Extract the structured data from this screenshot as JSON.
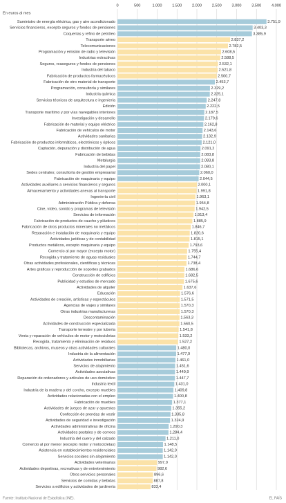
{
  "chart_data": {
    "type": "hbar",
    "subtitle": "En euros al mes",
    "source": "Fuente: Instituto Nacional de Estadística (INE).",
    "credit": "EL PAÍS",
    "xlim": [
      0,
      4000
    ],
    "xticks": [
      0,
      500,
      {
        "value": 1000,
        "label": "1.000"
      },
      {
        "value": 1500,
        "label": "1.500"
      },
      {
        "value": 2000,
        "label": "2.000"
      },
      {
        "value": 2500,
        "label": "2.500"
      },
      {
        "value": 3000,
        "label": "3.000"
      },
      {
        "value": 3500,
        "label": "3.500"
      },
      {
        "value": 4000,
        "label": "4.000"
      }
    ],
    "grid": true,
    "categories": [
      "Suministro de energía eléctrica, gas y aire acondicionado",
      "Servicios financieros, excepto seguros y fondos de pensiones",
      "Coquerías y refino de petróleo",
      "Transporte aéreo",
      "Telecomunicaciones",
      "Programación y emisión de radio y televisión",
      "Industrias extractivas",
      "Seguros, reaseguros y fondos de pensiones",
      "Industria del tabaco",
      "Fabricación de productos farmacéuticos",
      "Fabricación de otro material de transporte",
      "Programación, consultoría y similares",
      "Industria química",
      "Servicios técnicos de arquitectura e ingeniería",
      "Edición",
      "Transporte marítimo y por vías navegables interiores",
      "Investigación y desarrollo",
      "Fabricación de material y equipo eléctrico",
      "Fabricación de vehículos de motor",
      "Actividades sanitarias",
      "Fabricación de productos informáticos, electrónicos y ópticos",
      "Captación, depuración y distribución de agua",
      "Fabricación de bebidas",
      "Metalurgia",
      "Industria del papel",
      "Sedes centrales; consultoría de gestión empresarial",
      "Fabricación de maquinaria y equipo",
      "Actividades auxiliares a servicios financieros y seguros",
      "Almacenamiento y actividades anexas al transporte",
      "Ingeniería civil",
      "Administración Pública y defensa",
      "Cine, vídeo, sonido y programas de televisión",
      "Servicios de información",
      "Fabricación de productos de caucho y plásticos",
      "Fabricación de otros productos minerales no metálicos",
      "Reparación e instalación de maquinaria y equipo",
      "Actividades jurídicas y de contabilidad",
      "Productos metálicos, excepto maquinaria y equipo",
      "Comercio al por mayor (excepto motor)",
      "Recogida y tratamiento de aguas residuales",
      "Otras actividades profesionales, científicas y técnicas",
      "Artes gráficas y reproducción de soportes grabados",
      "Construcción de edificios",
      "Publicidad y estudios de mercado",
      "Actividades de alquiler",
      "Educación",
      "Actividades de creación, artísticas y espectáculos",
      "Agencias de viajes y similares",
      "Otras industrias manufactureras",
      "Descontaminación",
      "Actividades de construcción especializada",
      "Transporte terrestre y por tubería",
      "Venta y reparación de vehículos de motor y motocicletas",
      "Recogida, tratamiento y eliminación de residuos",
      "Bibliotecas, archivos, museos y otras actividades culturales",
      "Industria de la alimentación",
      "Actividades inmobiliarias",
      "Servicios de alojamiento",
      "Actividades asociativas",
      "Reparación de ordenadores y artículos de uso doméstico",
      "Industria textil",
      "Industria de la madera y del corcho, excepto muebles",
      "Actividades relacionadas con el empleo",
      "Fabricación de muebles",
      "Actividades de juegos de azar y apuestas",
      "Confección de prendas de vestir",
      "Actividades de seguridad e investigación",
      "Actividades administrativas de oficina",
      "Actividades postales y de correos",
      "Industria del cuero y del calzado",
      "Comercio al por menor (excepto motor y motocicletas)",
      "Asistencia en establecimientos residenciales",
      "Servicios sociales sin alojamiento",
      "Actividades veterinarias",
      "Actividades deportivas, recreativas y de entretenimiento",
      "Otros servicios personales",
      "Servicios de comidas y bebidas",
      "Servicios a edificios y actividades de jardinería"
    ],
    "values": [
      3751.9,
      3403.3,
      3385.9,
      2837.2,
      2782.5,
      2608.5,
      2588.5,
      2532.1,
      2521.8,
      2500.7,
      2453.7,
      2329.2,
      2325.1,
      2247.8,
      2222.5,
      2187.5,
      2179.6,
      2162.8,
      2143.6,
      2132.9,
      2121.0,
      2091.2,
      2083.8,
      2083.8,
      2080.1,
      2060.0,
      2044.5,
      2000.1,
      1991.8,
      1963.1,
      1954.8,
      1942.5,
      1913.4,
      1885.9,
      1846.7,
      1820.6,
      1815.1,
      1793.6,
      1755.4,
      1744.7,
      1738.4,
      1686.6,
      1682.5,
      1675.6,
      1637.6,
      1576.6,
      1571.5,
      1570.3,
      1570.3,
      1563.3,
      1560.5,
      1541.8,
      1533.2,
      1527.2,
      1480.0,
      1477.9,
      1461.0,
      1451.6,
      1449.9,
      1447.7,
      1431.0,
      1409.8,
      1400.8,
      1377.1,
      1355.2,
      1335.8,
      1324.9,
      1290.3,
      1284.4,
      1211.0,
      1148.5,
      1142.0,
      1142.0,
      997.0,
      982.6,
      896.6,
      887.8,
      833.4
    ],
    "value_labels": [
      "3.751,9",
      "3.403,3",
      "3.385,9",
      "2.837,2",
      "2.782,5",
      "2.608,5",
      "2.588,5",
      "2.532,1",
      "2.521,8",
      "2.500,7",
      "2.453,7",
      "2.329,2",
      "2.325,1",
      "2.247,8",
      "2.222,5",
      "2.187,5",
      "2.179,6",
      "2.162,8",
      "2.143,6",
      "2.132,9",
      "2.121,0",
      "2.091,2",
      "2.083,8",
      "2.083,8",
      "2.080,1",
      "2.060,0",
      "2.044,5",
      "2.000,1",
      "1.991,8",
      "1.963,1",
      "1.954,8",
      "1.942,5",
      "1.913,4",
      "1.885,9",
      "1.846,7",
      "1.820,6",
      "1.815,1",
      "1.793,6",
      "1.755,4",
      "1.744,7",
      "1.738,4",
      "1.686,6",
      "1.682,5",
      "1.675,6",
      "1.637,6",
      "1.576,6",
      "1.571,5",
      "1.570,3",
      "1.570,3",
      "1.563,3",
      "1.560,5",
      "1.541,8",
      "1.533,2",
      "1.527,2",
      "1.480,0",
      "1.477,9",
      "1.461,0",
      "1.451,6",
      "1.449,9",
      "1.447,7",
      "1.431,0",
      "1.409,8",
      "1.400,8",
      "1.377,1",
      "1.355,2",
      "1.335,8",
      "1.324,9",
      "1.290,3",
      "1.284,4",
      "1.211,0",
      "1.148,5",
      "1.142,0",
      "1.142,0",
      "997,0",
      "982,6",
      "896,6",
      "887,8",
      "833,4"
    ],
    "colors": [
      "#a6cbda",
      "#a6cbda",
      "#a6cbda",
      "#fbe2a8",
      "#fbe2a8",
      "#fbe2a8",
      "#fbe2a8",
      "#fbe2a8",
      "#fbe2a8",
      "#fbe2a8",
      "#a6cbda",
      "#a6cbda",
      "#a6cbda",
      "#a6cbda",
      "#a6cbda",
      "#a6cbda",
      "#a6cbda",
      "#a6cbda",
      "#a6cbda",
      "#a6cbda",
      "#a6cbda",
      "#a6cbda",
      "#a6cbda",
      "#a6cbda",
      "#a6cbda",
      "#a6cbda",
      "#a6cbda",
      "#fbe2a8",
      "#fbe2a8",
      "#fbe2a8",
      "#fbe2a8",
      "#fbe2a8",
      "#fbe2a8",
      "#fbe2a8",
      "#fbe2a8",
      "#fbe2a8",
      "#fbe2a8",
      "#fbe2a8",
      "#fbe2a8",
      "#fbe2a8",
      "#fbe2a8",
      "#fbe2a8",
      "#fbe2a8",
      "#fbe2a8",
      "#fbe2a8",
      "#fbe2a8",
      "#fbe2a8",
      "#fbe2a8",
      "#fbe2a8",
      "#fbe2a8",
      "#fbe2a8",
      "#fbe2a8",
      "#fbe2a8",
      "#fbe2a8",
      "#a6cbda",
      "#a6cbda",
      "#a6cbda",
      "#a6cbda",
      "#a6cbda",
      "#a6cbda",
      "#a6cbda",
      "#a6cbda",
      "#a6cbda",
      "#a6cbda",
      "#a6cbda",
      "#a6cbda",
      "#a6cbda",
      "#a6cbda",
      "#a6cbda",
      "#a6cbda",
      "#a6cbda",
      "#a6cbda",
      "#a6cbda",
      "#fbe2a8",
      "#fbe2a8",
      "#fbe2a8",
      "#fbe2a8",
      "#fbe2a8"
    ]
  }
}
